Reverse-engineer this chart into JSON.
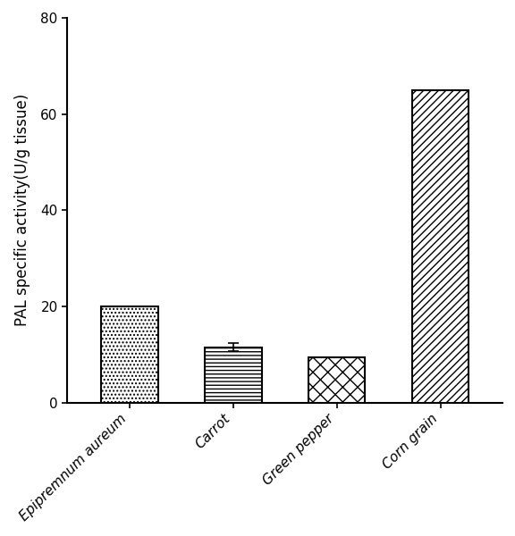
{
  "categories": [
    "Epipremnum aureum",
    "Carrot",
    "Green pepper",
    "Corn grain"
  ],
  "values": [
    20.0,
    11.5,
    9.5,
    65.0
  ],
  "error_bars": [
    0.0,
    0.8,
    0.0,
    0.0
  ],
  "hatches": [
    "....",
    "----",
    "//\\\\",
    "////"
  ],
  "ylabel": "PAL specific activity(U/g tissue)",
  "ylim": [
    0,
    80
  ],
  "yticks": [
    0,
    20,
    40,
    60,
    80
  ],
  "bar_color": "white",
  "bar_edgecolor": "black",
  "bar_width": 0.55,
  "background_color": "#ffffff",
  "tick_fontsize": 11,
  "label_fontsize": 12,
  "linewidth": 1.5,
  "figsize": [
    5.76,
    6.0
  ],
  "dpi": 100
}
